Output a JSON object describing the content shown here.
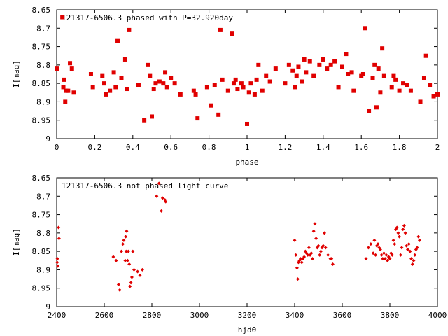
{
  "chart_data": [
    {
      "type": "scatter",
      "title": "121317-6506.3 phased with P=32.920day",
      "xlabel": "phase",
      "ylabel": "I[mag]",
      "xlim": [
        0,
        2
      ],
      "ylim": [
        8.65,
        9.0
      ],
      "y_inverted": true,
      "grid": false,
      "color": "#e00000",
      "x_ticks": [
        "0",
        "0.2",
        "0.4",
        "0.6",
        "0.8",
        "1",
        "1.2",
        "1.4",
        "1.6",
        "1.8",
        "2"
      ],
      "y_ticks": [
        "8.65",
        "8.7",
        "8.75",
        "8.8",
        "8.85",
        "8.9",
        "8.95",
        "9"
      ],
      "points": [
        [
          0.0,
          8.81
        ],
        [
          0.03,
          8.67
        ],
        [
          0.035,
          8.86
        ],
        [
          0.04,
          8.84
        ],
        [
          0.045,
          8.9
        ],
        [
          0.05,
          8.87
        ],
        [
          0.06,
          8.87
        ],
        [
          0.07,
          8.795
        ],
        [
          0.08,
          8.81
        ],
        [
          0.09,
          8.875
        ],
        [
          0.18,
          8.825
        ],
        [
          0.19,
          8.86
        ],
        [
          0.24,
          8.83
        ],
        [
          0.25,
          8.85
        ],
        [
          0.26,
          8.88
        ],
        [
          0.28,
          8.87
        ],
        [
          0.3,
          8.82
        ],
        [
          0.31,
          8.86
        ],
        [
          0.32,
          8.735
        ],
        [
          0.34,
          8.835
        ],
        [
          0.36,
          8.785
        ],
        [
          0.37,
          8.865
        ],
        [
          0.38,
          8.705
        ],
        [
          0.43,
          8.855
        ],
        [
          0.46,
          8.95
        ],
        [
          0.48,
          8.8
        ],
        [
          0.49,
          8.83
        ],
        [
          0.5,
          8.94
        ],
        [
          0.51,
          8.865
        ],
        [
          0.52,
          8.85
        ],
        [
          0.54,
          8.845
        ],
        [
          0.56,
          8.85
        ],
        [
          0.57,
          8.82
        ],
        [
          0.58,
          8.86
        ],
        [
          0.6,
          8.835
        ],
        [
          0.62,
          8.85
        ],
        [
          0.65,
          8.88
        ],
        [
          0.72,
          8.87
        ],
        [
          0.73,
          8.88
        ],
        [
          0.74,
          8.945
        ],
        [
          0.79,
          8.86
        ],
        [
          0.81,
          8.91
        ],
        [
          0.83,
          8.855
        ],
        [
          0.85,
          8.935
        ],
        [
          0.86,
          8.705
        ],
        [
          0.87,
          8.84
        ],
        [
          0.9,
          8.87
        ],
        [
          0.92,
          8.715
        ],
        [
          0.93,
          8.85
        ],
        [
          0.94,
          8.84
        ],
        [
          0.95,
          8.865
        ],
        [
          0.97,
          8.85
        ],
        [
          0.98,
          8.86
        ],
        [
          1.0,
          8.96
        ],
        [
          1.01,
          8.875
        ],
        [
          1.02,
          8.85
        ],
        [
          1.04,
          8.88
        ],
        [
          1.05,
          8.84
        ],
        [
          1.06,
          8.8
        ],
        [
          1.08,
          8.87
        ],
        [
          1.1,
          8.83
        ],
        [
          1.12,
          8.845
        ],
        [
          1.15,
          8.81
        ],
        [
          1.2,
          8.85
        ],
        [
          1.22,
          8.8
        ],
        [
          1.24,
          8.815
        ],
        [
          1.25,
          8.86
        ],
        [
          1.26,
          8.83
        ],
        [
          1.27,
          8.805
        ],
        [
          1.29,
          8.845
        ],
        [
          1.3,
          8.785
        ],
        [
          1.31,
          8.82
        ],
        [
          1.33,
          8.79
        ],
        [
          1.35,
          8.83
        ],
        [
          1.38,
          8.8
        ],
        [
          1.4,
          8.785
        ],
        [
          1.42,
          8.81
        ],
        [
          1.44,
          8.8
        ],
        [
          1.46,
          8.79
        ],
        [
          1.48,
          8.86
        ],
        [
          1.5,
          8.805
        ],
        [
          1.52,
          8.77
        ],
        [
          1.53,
          8.825
        ],
        [
          1.55,
          8.82
        ],
        [
          1.56,
          8.87
        ],
        [
          1.6,
          8.83
        ],
        [
          1.61,
          8.825
        ],
        [
          1.62,
          8.7
        ],
        [
          1.64,
          8.925
        ],
        [
          1.66,
          8.835
        ],
        [
          1.67,
          8.8
        ],
        [
          1.68,
          8.915
        ],
        [
          1.69,
          8.81
        ],
        [
          1.7,
          8.875
        ],
        [
          1.71,
          8.755
        ],
        [
          1.72,
          8.83
        ],
        [
          1.76,
          8.86
        ],
        [
          1.77,
          8.83
        ],
        [
          1.78,
          8.84
        ],
        [
          1.8,
          8.87
        ],
        [
          1.82,
          8.85
        ],
        [
          1.84,
          8.855
        ],
        [
          1.86,
          8.87
        ],
        [
          1.91,
          8.9
        ],
        [
          1.93,
          8.835
        ],
        [
          1.94,
          8.775
        ],
        [
          1.96,
          8.855
        ],
        [
          1.98,
          8.885
        ],
        [
          2.0,
          8.88
        ]
      ]
    },
    {
      "type": "scatter",
      "title": "121317-6506.3 not phased light curve",
      "xlabel": "hjd0",
      "ylabel": "I[mag]",
      "xlim": [
        2400,
        4000
      ],
      "ylim": [
        8.65,
        9.0
      ],
      "y_inverted": true,
      "grid": false,
      "color": "#e00000",
      "x_ticks": [
        "2400",
        "2600",
        "2800",
        "3000",
        "3200",
        "3400",
        "3600",
        "3800",
        "4000"
      ],
      "y_ticks": [
        "8.65",
        "8.7",
        "8.75",
        "8.8",
        "8.85",
        "8.9",
        "8.95",
        "9"
      ],
      "points": [
        [
          2402,
          8.88
        ],
        [
          2403,
          8.87
        ],
        [
          2405,
          8.89
        ],
        [
          2408,
          8.785
        ],
        [
          2410,
          8.815
        ],
        [
          2638,
          8.865
        ],
        [
          2650,
          8.875
        ],
        [
          2660,
          8.94
        ],
        [
          2665,
          8.955
        ],
        [
          2672,
          8.85
        ],
        [
          2678,
          8.83
        ],
        [
          2682,
          8.82
        ],
        [
          2688,
          8.875
        ],
        [
          2690,
          8.81
        ],
        [
          2692,
          8.85
        ],
        [
          2694,
          8.795
        ],
        [
          2698,
          8.875
        ],
        [
          2701,
          8.85
        ],
        [
          2705,
          8.885
        ],
        [
          2708,
          8.945
        ],
        [
          2712,
          8.935
        ],
        [
          2716,
          8.92
        ],
        [
          2720,
          8.85
        ],
        [
          2725,
          8.9
        ],
        [
          2740,
          8.905
        ],
        [
          2750,
          8.915
        ],
        [
          2760,
          8.9
        ],
        [
          2820,
          8.7
        ],
        [
          2830,
          8.665
        ],
        [
          2840,
          8.74
        ],
        [
          2845,
          8.705
        ],
        [
          2855,
          8.71
        ],
        [
          2858,
          8.715
        ],
        [
          3400,
          8.82
        ],
        [
          3405,
          8.86
        ],
        [
          3410,
          8.895
        ],
        [
          3413,
          8.925
        ],
        [
          3416,
          8.88
        ],
        [
          3420,
          8.875
        ],
        [
          3425,
          8.87
        ],
        [
          3430,
          8.88
        ],
        [
          3435,
          8.87
        ],
        [
          3440,
          8.865
        ],
        [
          3445,
          8.85
        ],
        [
          3450,
          8.855
        ],
        [
          3455,
          8.86
        ],
        [
          3460,
          8.84
        ],
        [
          3465,
          8.86
        ],
        [
          3470,
          8.855
        ],
        [
          3475,
          8.87
        ],
        [
          3480,
          8.795
        ],
        [
          3485,
          8.775
        ],
        [
          3490,
          8.815
        ],
        [
          3495,
          8.84
        ],
        [
          3500,
          8.835
        ],
        [
          3505,
          8.86
        ],
        [
          3510,
          8.85
        ],
        [
          3515,
          8.84
        ],
        [
          3520,
          8.835
        ],
        [
          3525,
          8.8
        ],
        [
          3530,
          8.84
        ],
        [
          3540,
          8.86
        ],
        [
          3550,
          8.87
        ],
        [
          3555,
          8.87
        ],
        [
          3560,
          8.885
        ],
        [
          3700,
          8.87
        ],
        [
          3710,
          8.84
        ],
        [
          3720,
          8.83
        ],
        [
          3730,
          8.855
        ],
        [
          3735,
          8.82
        ],
        [
          3740,
          8.86
        ],
        [
          3745,
          8.835
        ],
        [
          3750,
          8.83
        ],
        [
          3755,
          8.84
        ],
        [
          3760,
          8.845
        ],
        [
          3765,
          8.86
        ],
        [
          3770,
          8.87
        ],
        [
          3775,
          8.855
        ],
        [
          3780,
          8.87
        ],
        [
          3785,
          8.86
        ],
        [
          3790,
          8.875
        ],
        [
          3795,
          8.865
        ],
        [
          3800,
          8.87
        ],
        [
          3805,
          8.855
        ],
        [
          3810,
          8.86
        ],
        [
          3815,
          8.82
        ],
        [
          3820,
          8.83
        ],
        [
          3825,
          8.79
        ],
        [
          3830,
          8.785
        ],
        [
          3835,
          8.8
        ],
        [
          3840,
          8.81
        ],
        [
          3845,
          8.86
        ],
        [
          3850,
          8.84
        ],
        [
          3855,
          8.79
        ],
        [
          3860,
          8.78
        ],
        [
          3865,
          8.8
        ],
        [
          3870,
          8.835
        ],
        [
          3875,
          8.845
        ],
        [
          3880,
          8.83
        ],
        [
          3885,
          8.85
        ],
        [
          3890,
          8.87
        ],
        [
          3895,
          8.885
        ],
        [
          3900,
          8.875
        ],
        [
          3905,
          8.86
        ],
        [
          3910,
          8.845
        ],
        [
          3915,
          8.84
        ],
        [
          3920,
          8.81
        ],
        [
          3925,
          8.82
        ]
      ]
    }
  ]
}
